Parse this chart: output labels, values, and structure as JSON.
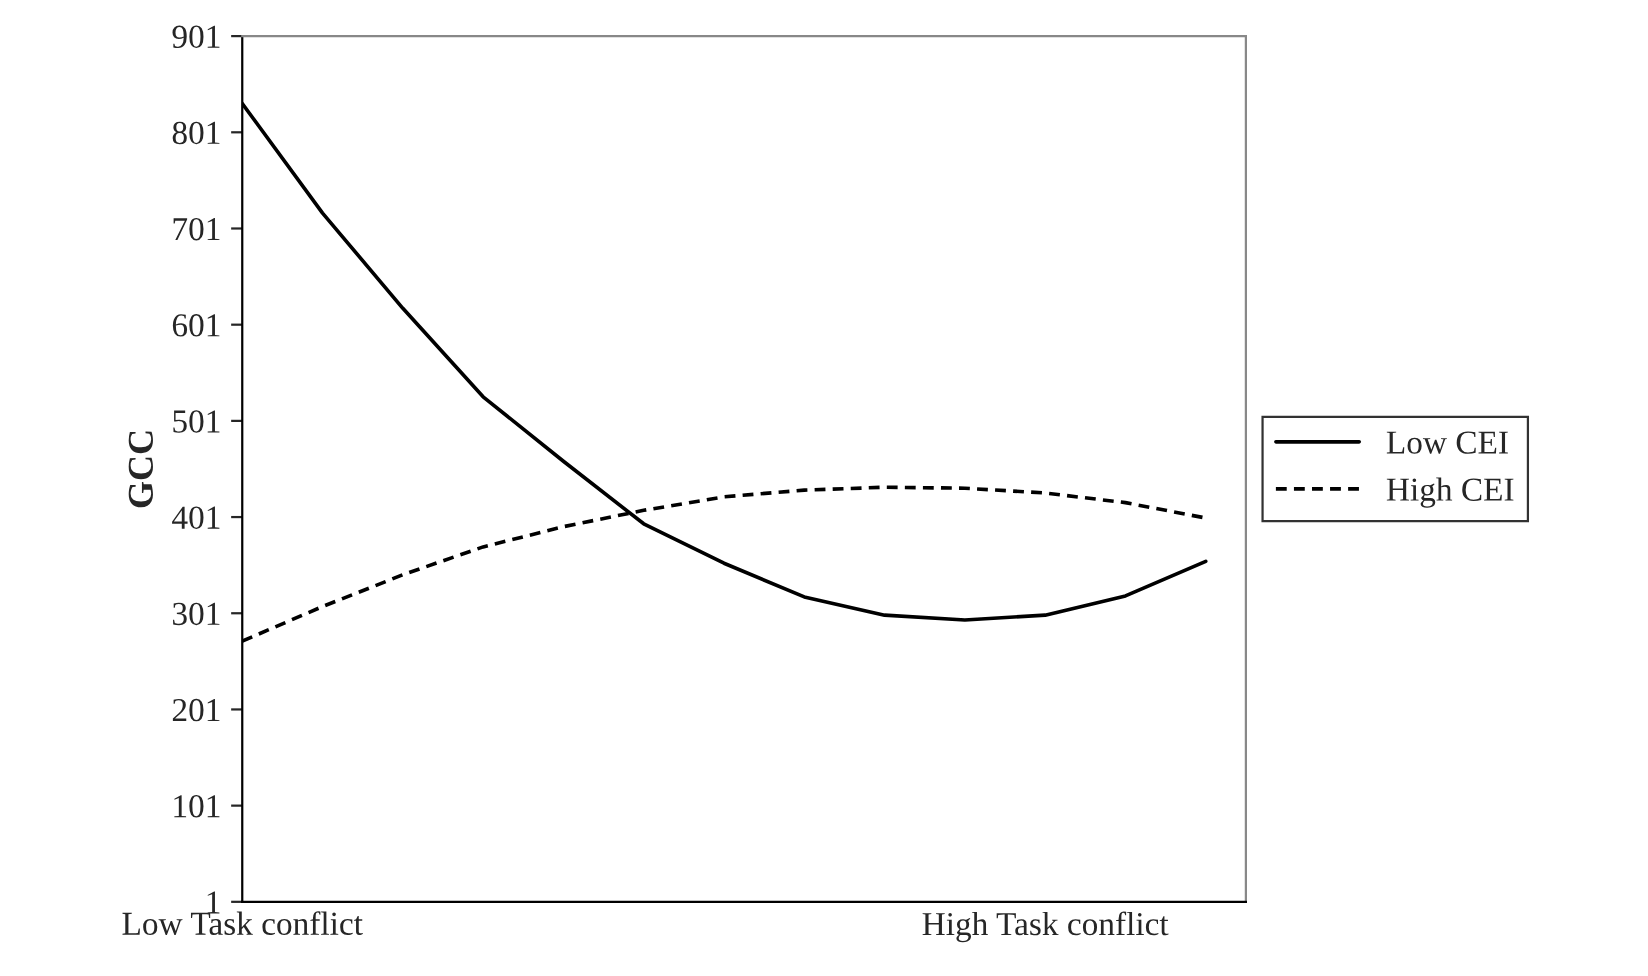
{
  "chart_data": {
    "type": "line",
    "categories": [
      "Low Task conflict",
      null,
      null,
      null,
      null,
      null,
      null,
      null,
      null,
      null,
      "High Task conflict",
      null,
      null
    ],
    "series": [
      {
        "name": "Low CEI",
        "color": "#000000",
        "line_style": "solid",
        "values": [
          831,
          717,
          618,
          526,
          459,
          394,
          353,
          318,
          299,
          294,
          299,
          319,
          355
        ]
      },
      {
        "name": "High CEI",
        "color": "#000000",
        "line_style": "dashed",
        "values": [
          272,
          308,
          341,
          370,
          391,
          408,
          422,
          429,
          432,
          431,
          426,
          416,
          400
        ]
      }
    ],
    "ylabel": "GCC",
    "ylim": [
      1,
      901
    ],
    "yticks": [
      1,
      101,
      201,
      301,
      401,
      501,
      601,
      701,
      801,
      901
    ],
    "grid": false,
    "legend": "right",
    "marker": "none"
  }
}
